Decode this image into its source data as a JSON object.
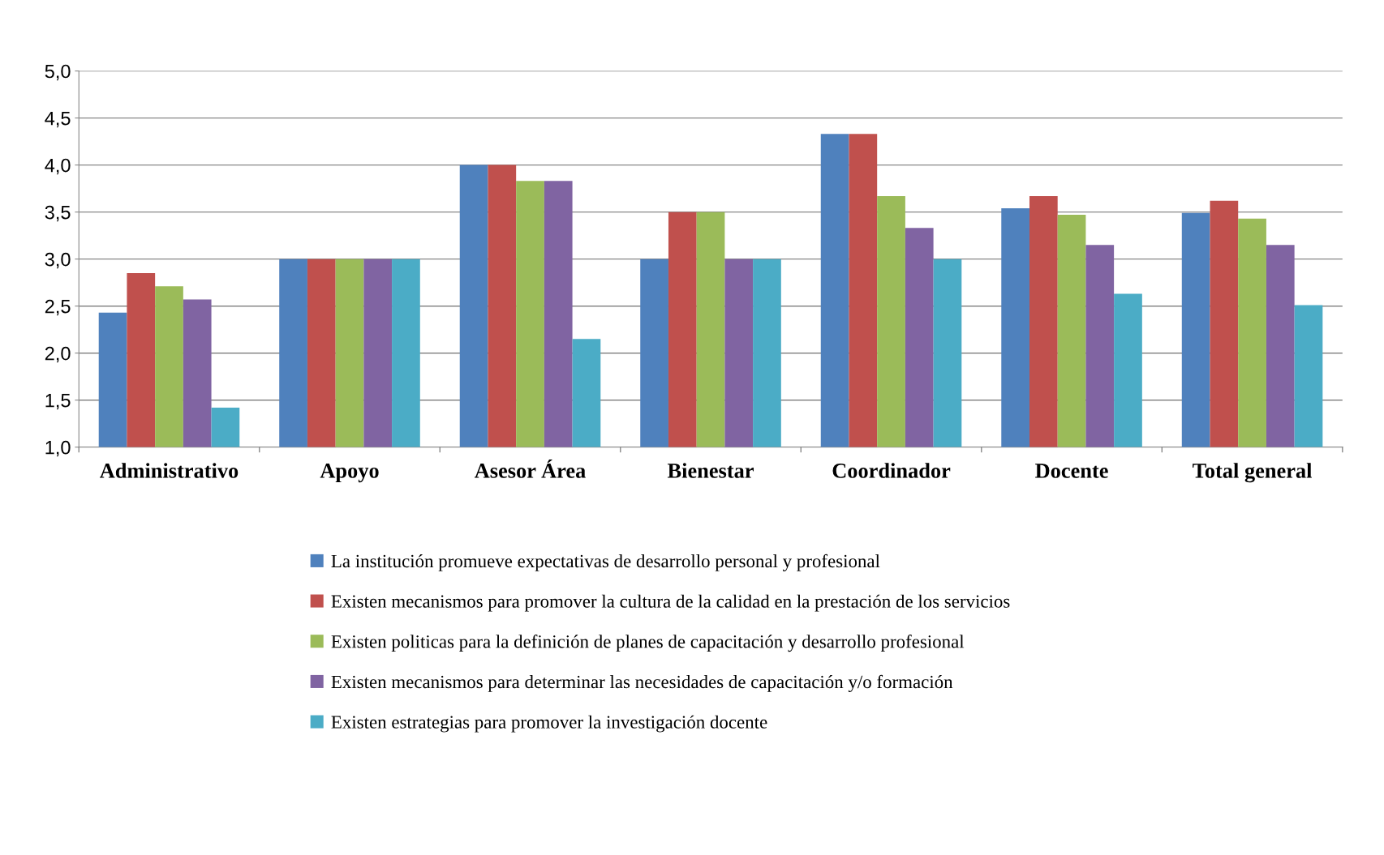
{
  "chart_data": {
    "type": "bar",
    "categories": [
      "Administrativo",
      "Apoyo",
      "Asesor Área",
      "Bienestar",
      "Coordinador",
      "Docente",
      "Total general"
    ],
    "series": [
      {
        "name": "La institución promueve expectativas de desarrollo personal y profesional",
        "color": "#4f81bd",
        "values": [
          2.43,
          3.0,
          4.0,
          3.0,
          4.33,
          3.54,
          3.49
        ]
      },
      {
        "name": "Existen mecanismos para promover la cultura de la calidad en la prestación de los servicios",
        "color": "#c0504d",
        "values": [
          2.85,
          3.0,
          4.0,
          3.5,
          4.33,
          3.67,
          3.62
        ]
      },
      {
        "name": "Existen politicas para la definición de planes de capacitación y desarrollo profesional",
        "color": "#9bbb59",
        "values": [
          2.71,
          3.0,
          3.83,
          3.5,
          3.67,
          3.47,
          3.43
        ]
      },
      {
        "name": "Existen mecanismos para determinar las necesidades de capacitación y/o formación",
        "color": "#8064a2",
        "values": [
          2.57,
          3.0,
          3.83,
          3.0,
          3.33,
          3.15,
          3.15
        ]
      },
      {
        "name": "Existen estrategias para promover la investigación docente",
        "color": "#4bacc6",
        "values": [
          1.42,
          3.0,
          2.15,
          3.0,
          3.0,
          2.63,
          2.51
        ]
      }
    ],
    "ylim": [
      1.0,
      5.0
    ],
    "yticks": [
      {
        "value": 1.0,
        "label": "1,0"
      },
      {
        "value": 1.5,
        "label": "1,5"
      },
      {
        "value": 2.0,
        "label": "2,0"
      },
      {
        "value": 2.5,
        "label": "2,5"
      },
      {
        "value": 3.0,
        "label": "3,0"
      },
      {
        "value": 3.5,
        "label": "3,5"
      },
      {
        "value": 4.0,
        "label": "4,0"
      },
      {
        "value": 4.5,
        "label": "4,5"
      },
      {
        "value": 5.0,
        "label": "5,0"
      }
    ],
    "grid": "y",
    "legend": "bottom"
  }
}
